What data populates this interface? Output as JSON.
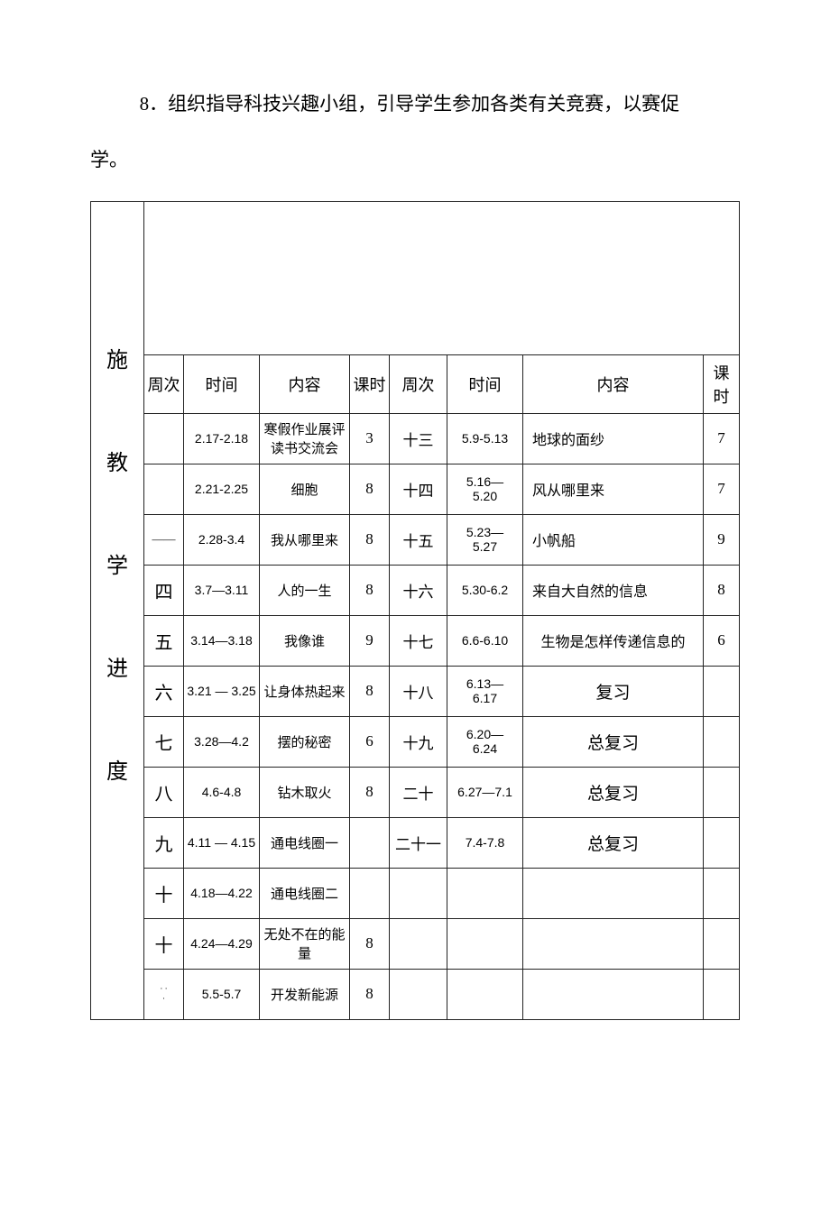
{
  "paragraph": {
    "line1": "8．组织指导科技兴趣小组，引导学生参加各类有关竞赛，以赛促",
    "line2": "学。"
  },
  "side_label": [
    "施",
    "教",
    "学",
    "进",
    "度"
  ],
  "headers": {
    "week1": "周次",
    "time1": "时间",
    "content1": "内容",
    "hours1": "课时",
    "week2": "周次",
    "time2": "时间",
    "content2": "内容",
    "hours2": "课时"
  },
  "rows": [
    {
      "w1": "",
      "t1": "2.17-2.18",
      "c1": "寒假作业展评\n读书交流会",
      "h1": "3",
      "w2": "十三",
      "t2": "5.9-5.13",
      "c2": "地球的面纱",
      "h2": "7",
      "h1b": true,
      "c2b": false
    },
    {
      "w1": "",
      "t1": "2.21-2.25",
      "c1": "细胞",
      "h1": "8",
      "w2": "十四",
      "t2": "5.16—5.20",
      "c2": "风从哪里来",
      "h2": "7",
      "h1b": true
    },
    {
      "w1": "二",
      "t1": "2.28-3.4",
      "c1": "我从哪里来",
      "h1": "8",
      "w2": "十五",
      "t2": "5.23—5.27",
      "c2": "小帆船",
      "h2": "9",
      "h1b": true,
      "w1dash": true
    },
    {
      "w1": "四",
      "t1": "3.7—3.11",
      "c1": "人的一生",
      "h1": "8",
      "w2": "十六",
      "t2": "5.30-6.2",
      "c2": "来自大自然的信息",
      "h2": "8",
      "h1b": true
    },
    {
      "w1": "五",
      "t1": "3.14—3.18",
      "c1": "我像谁",
      "h1": "9",
      "w2": "十七",
      "t2": "6.6-6.10",
      "c2": "生物是怎样传递信息的",
      "h2": "6",
      "h1b": true
    },
    {
      "w1": "六",
      "t1": "3.21 — 3.25",
      "c1": "让身体热起来",
      "h1": "8",
      "w2": "十八",
      "t2": "6.13—6.17",
      "c2": "复习",
      "h2": "",
      "h1b": true,
      "c2big": true
    },
    {
      "w1": "七",
      "t1": "3.28—4.2",
      "c1": "摆的秘密",
      "h1": "6",
      "w2": "十九",
      "t2": "6.20—6.24",
      "c2": "总复习",
      "h2": "",
      "h1b": true,
      "c2big": true
    },
    {
      "w1": "八",
      "t1": "4.6-4.8",
      "c1": "钻木取火",
      "h1": "8",
      "w2": "二十",
      "t2": "6.27—7.1",
      "c2": "总复习",
      "h2": "",
      "h1b": true,
      "c2big": true
    },
    {
      "w1": "九",
      "t1": "4.11 — 4.15",
      "c1": "通电线圈一",
      "h1": "",
      "w2": "二十一",
      "t2": "7.4-7.8",
      "c2": "总复习",
      "h2": "",
      "c2big": true,
      "w2b": true
    },
    {
      "w1": "十",
      "t1": "4.18—4.22",
      "c1": "通电线圈二",
      "h1": "",
      "w2": "",
      "t2": "",
      "c2": "",
      "h2": ""
    },
    {
      "w1": "十",
      "t1": "4.24—4.29",
      "c1": "无处不在的能量",
      "h1": "8",
      "w2": "",
      "t2": "",
      "c2": "",
      "h2": "",
      "h1b": true
    },
    {
      "w1": "dots",
      "t1": "5.5-5.7",
      "c1": "开发新能源",
      "h1": "8",
      "w2": "",
      "t2": "",
      "c2": "",
      "h2": "",
      "h1b": true
    }
  ],
  "colors": {
    "text": "#000000",
    "border": "#222222",
    "bg": "#ffffff"
  },
  "fontsizes": {
    "para": 21,
    "side": 24,
    "header": 18,
    "cell_cn": 17,
    "cell_time": 14,
    "cell_content": 15
  }
}
